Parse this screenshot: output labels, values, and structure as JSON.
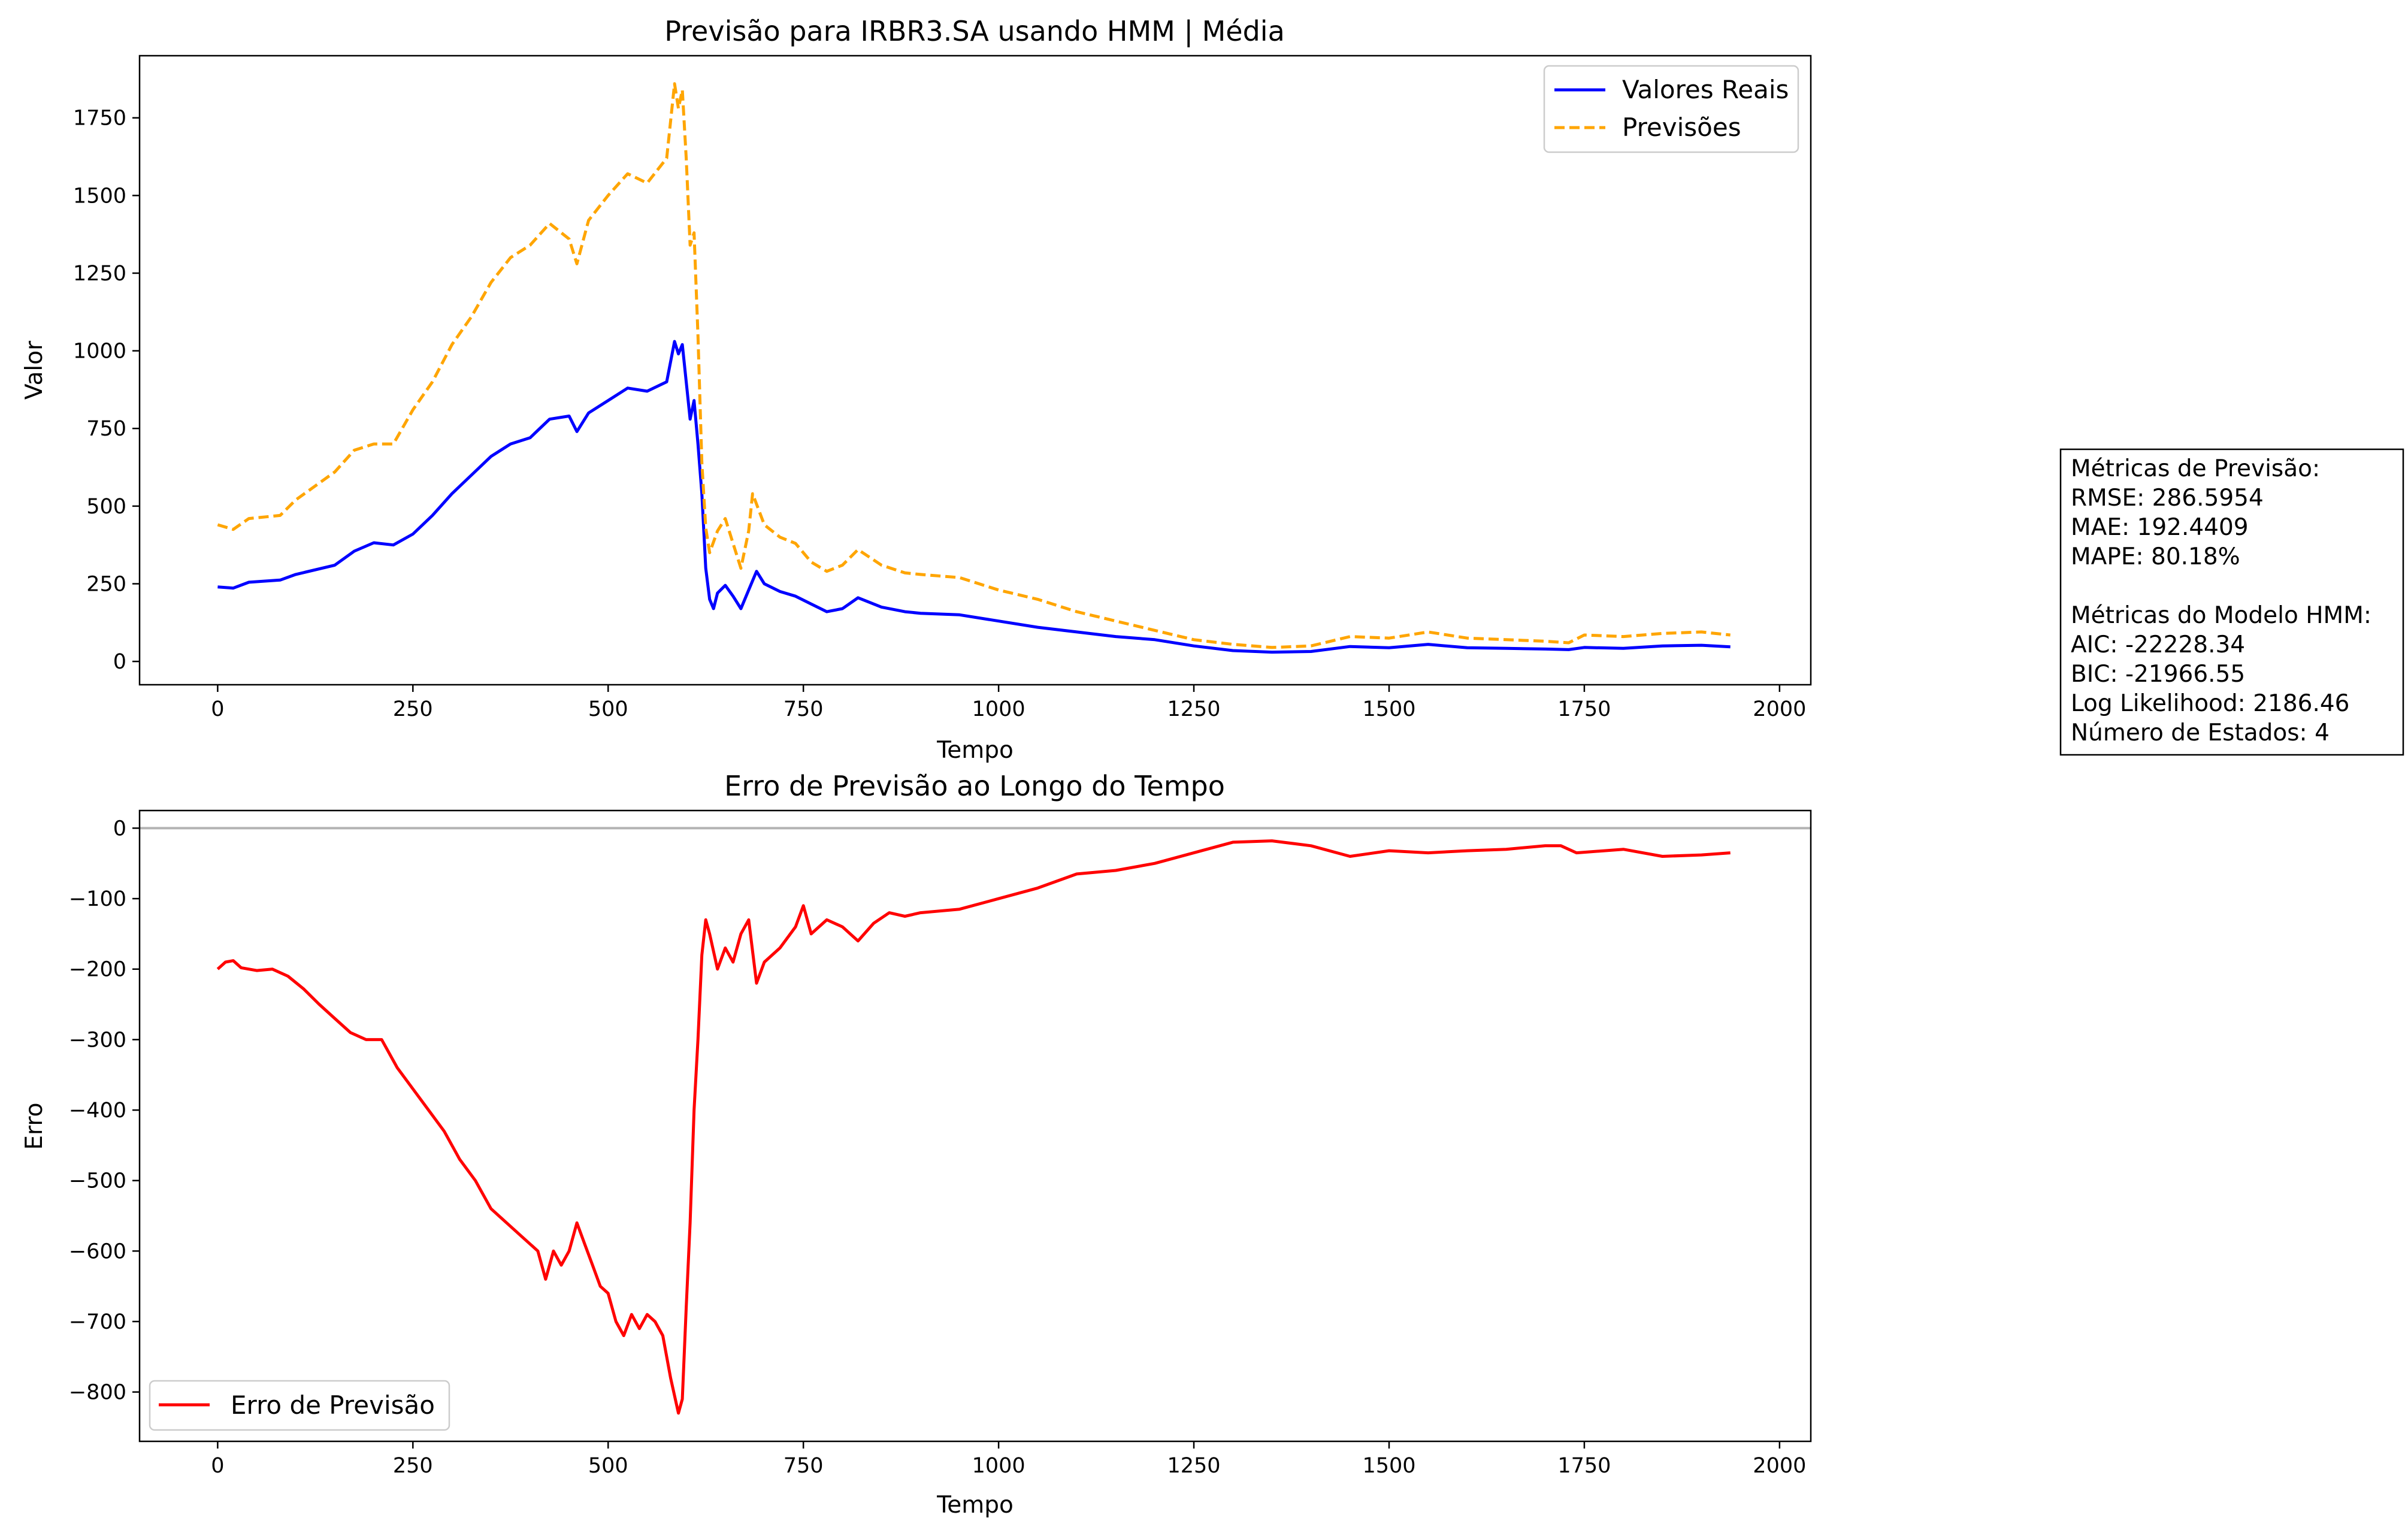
{
  "chart_data": [
    {
      "type": "line",
      "title": "Previsão para IRBR3.SA usando HMM | Média",
      "xlabel": "Tempo",
      "ylabel": "Valor",
      "xlim": [
        -100,
        2040
      ],
      "ylim": [
        -75,
        1950
      ],
      "xticks": [
        0,
        250,
        500,
        750,
        1000,
        1250,
        1500,
        1750,
        2000
      ],
      "yticks": [
        0,
        250,
        500,
        750,
        1000,
        1250,
        1500,
        1750
      ],
      "legend_position": "upper right",
      "series": [
        {
          "name": "Valores Reais",
          "color": "#0000ff",
          "style": "solid",
          "points": [
            [
              0,
              240
            ],
            [
              20,
              236
            ],
            [
              40,
              255
            ],
            [
              80,
              262
            ],
            [
              100,
              280
            ],
            [
              150,
              310
            ],
            [
              175,
              355
            ],
            [
              200,
              382
            ],
            [
              225,
              375
            ],
            [
              250,
              410
            ],
            [
              275,
              470
            ],
            [
              300,
              540
            ],
            [
              325,
              600
            ],
            [
              350,
              660
            ],
            [
              375,
              700
            ],
            [
              400,
              720
            ],
            [
              425,
              780
            ],
            [
              450,
              790
            ],
            [
              460,
              740
            ],
            [
              475,
              800
            ],
            [
              500,
              840
            ],
            [
              525,
              880
            ],
            [
              550,
              870
            ],
            [
              575,
              900
            ],
            [
              585,
              1030
            ],
            [
              590,
              990
            ],
            [
              595,
              1020
            ],
            [
              600,
              900
            ],
            [
              605,
              780
            ],
            [
              610,
              840
            ],
            [
              615,
              700
            ],
            [
              620,
              540
            ],
            [
              625,
              300
            ],
            [
              630,
              200
            ],
            [
              635,
              170
            ],
            [
              640,
              220
            ],
            [
              650,
              245
            ],
            [
              660,
              210
            ],
            [
              670,
              170
            ],
            [
              680,
              230
            ],
            [
              690,
              290
            ],
            [
              700,
              250
            ],
            [
              720,
              225
            ],
            [
              740,
              210
            ],
            [
              760,
              185
            ],
            [
              780,
              160
            ],
            [
              800,
              170
            ],
            [
              820,
              205
            ],
            [
              850,
              175
            ],
            [
              880,
              160
            ],
            [
              900,
              155
            ],
            [
              950,
              150
            ],
            [
              1000,
              130
            ],
            [
              1050,
              110
            ],
            [
              1100,
              95
            ],
            [
              1150,
              80
            ],
            [
              1200,
              70
            ],
            [
              1250,
              50
            ],
            [
              1300,
              35
            ],
            [
              1350,
              30
            ],
            [
              1400,
              32
            ],
            [
              1450,
              48
            ],
            [
              1500,
              44
            ],
            [
              1550,
              55
            ],
            [
              1600,
              44
            ],
            [
              1650,
              42
            ],
            [
              1700,
              40
            ],
            [
              1730,
              38
            ],
            [
              1750,
              45
            ],
            [
              1800,
              42
            ],
            [
              1850,
              50
            ],
            [
              1900,
              52
            ],
            [
              1937,
              47
            ]
          ]
        },
        {
          "name": "Previsões",
          "color": "#ffa500",
          "style": "dashed",
          "points": [
            [
              0,
              440
            ],
            [
              20,
              425
            ],
            [
              40,
              460
            ],
            [
              80,
              470
            ],
            [
              100,
              520
            ],
            [
              150,
              610
            ],
            [
              175,
              680
            ],
            [
              200,
              700
            ],
            [
              225,
              700
            ],
            [
              250,
              810
            ],
            [
              275,
              900
            ],
            [
              300,
              1020
            ],
            [
              325,
              1110
            ],
            [
              350,
              1220
            ],
            [
              375,
              1300
            ],
            [
              400,
              1340
            ],
            [
              425,
              1410
            ],
            [
              450,
              1360
            ],
            [
              460,
              1280
            ],
            [
              475,
              1420
            ],
            [
              500,
              1500
            ],
            [
              525,
              1570
            ],
            [
              550,
              1540
            ],
            [
              575,
              1620
            ],
            [
              585,
              1860
            ],
            [
              590,
              1780
            ],
            [
              595,
              1840
            ],
            [
              600,
              1620
            ],
            [
              605,
              1340
            ],
            [
              610,
              1380
            ],
            [
              615,
              1050
            ],
            [
              620,
              640
            ],
            [
              625,
              430
            ],
            [
              630,
              350
            ],
            [
              640,
              420
            ],
            [
              650,
              460
            ],
            [
              660,
              380
            ],
            [
              670,
              300
            ],
            [
              680,
              420
            ],
            [
              685,
              540
            ],
            [
              700,
              440
            ],
            [
              720,
              400
            ],
            [
              740,
              380
            ],
            [
              760,
              320
            ],
            [
              780,
              290
            ],
            [
              800,
              310
            ],
            [
              820,
              360
            ],
            [
              850,
              310
            ],
            [
              880,
              285
            ],
            [
              900,
              280
            ],
            [
              950,
              270
            ],
            [
              1000,
              230
            ],
            [
              1050,
              200
            ],
            [
              1100,
              160
            ],
            [
              1150,
              130
            ],
            [
              1200,
              100
            ],
            [
              1250,
              70
            ],
            [
              1300,
              55
            ],
            [
              1350,
              45
            ],
            [
              1400,
              50
            ],
            [
              1450,
              80
            ],
            [
              1500,
              75
            ],
            [
              1550,
              95
            ],
            [
              1600,
              75
            ],
            [
              1650,
              70
            ],
            [
              1700,
              65
            ],
            [
              1730,
              60
            ],
            [
              1750,
              85
            ],
            [
              1800,
              80
            ],
            [
              1850,
              90
            ],
            [
              1900,
              95
            ],
            [
              1937,
              85
            ]
          ]
        }
      ]
    },
    {
      "type": "line",
      "title": "Erro de Previsão ao Longo do Tempo",
      "xlabel": "Tempo",
      "ylabel": "Erro",
      "xlim": [
        -100,
        2040
      ],
      "ylim": [
        -870,
        25
      ],
      "xticks": [
        0,
        250,
        500,
        750,
        1000,
        1250,
        1500,
        1750,
        2000
      ],
      "yticks": [
        0,
        -100,
        -200,
        -300,
        -400,
        -500,
        -600,
        -700,
        -800
      ],
      "legend_position": "lower left",
      "reference_line": 0,
      "series": [
        {
          "name": "Erro de Previsão",
          "color": "#ff0000",
          "style": "solid",
          "points": [
            [
              0,
              -200
            ],
            [
              10,
              -190
            ],
            [
              20,
              -188
            ],
            [
              30,
              -198
            ],
            [
              50,
              -202
            ],
            [
              70,
              -200
            ],
            [
              90,
              -210
            ],
            [
              110,
              -228
            ],
            [
              130,
              -250
            ],
            [
              150,
              -270
            ],
            [
              170,
              -290
            ],
            [
              190,
              -300
            ],
            [
              210,
              -300
            ],
            [
              230,
              -340
            ],
            [
              250,
              -370
            ],
            [
              270,
              -400
            ],
            [
              290,
              -430
            ],
            [
              310,
              -470
            ],
            [
              330,
              -500
            ],
            [
              350,
              -540
            ],
            [
              370,
              -560
            ],
            [
              390,
              -580
            ],
            [
              410,
              -600
            ],
            [
              420,
              -640
            ],
            [
              430,
              -600
            ],
            [
              440,
              -620
            ],
            [
              450,
              -600
            ],
            [
              460,
              -560
            ],
            [
              470,
              -590
            ],
            [
              480,
              -620
            ],
            [
              490,
              -650
            ],
            [
              500,
              -660
            ],
            [
              510,
              -700
            ],
            [
              520,
              -720
            ],
            [
              530,
              -690
            ],
            [
              540,
              -710
            ],
            [
              550,
              -690
            ],
            [
              560,
              -700
            ],
            [
              570,
              -720
            ],
            [
              580,
              -780
            ],
            [
              590,
              -830
            ],
            [
              595,
              -810
            ],
            [
              600,
              -680
            ],
            [
              605,
              -560
            ],
            [
              610,
              -400
            ],
            [
              615,
              -300
            ],
            [
              620,
              -180
            ],
            [
              625,
              -130
            ],
            [
              630,
              -150
            ],
            [
              640,
              -200
            ],
            [
              650,
              -170
            ],
            [
              660,
              -190
            ],
            [
              670,
              -150
            ],
            [
              680,
              -130
            ],
            [
              690,
              -220
            ],
            [
              700,
              -190
            ],
            [
              720,
              -170
            ],
            [
              740,
              -140
            ],
            [
              750,
              -110
            ],
            [
              760,
              -150
            ],
            [
              780,
              -130
            ],
            [
              800,
              -140
            ],
            [
              820,
              -160
            ],
            [
              840,
              -135
            ],
            [
              860,
              -120
            ],
            [
              880,
              -125
            ],
            [
              900,
              -120
            ],
            [
              950,
              -115
            ],
            [
              1000,
              -100
            ],
            [
              1050,
              -85
            ],
            [
              1100,
              -65
            ],
            [
              1150,
              -60
            ],
            [
              1200,
              -50
            ],
            [
              1250,
              -35
            ],
            [
              1300,
              -20
            ],
            [
              1350,
              -18
            ],
            [
              1400,
              -25
            ],
            [
              1450,
              -40
            ],
            [
              1500,
              -32
            ],
            [
              1550,
              -35
            ],
            [
              1600,
              -32
            ],
            [
              1650,
              -30
            ],
            [
              1700,
              -25
            ],
            [
              1720,
              -25
            ],
            [
              1740,
              -35
            ],
            [
              1800,
              -30
            ],
            [
              1850,
              -40
            ],
            [
              1900,
              -38
            ],
            [
              1937,
              -35
            ]
          ]
        }
      ]
    }
  ],
  "metrics_box": {
    "lines": [
      "Métricas de Previsão:",
      "RMSE: 286.5954",
      "MAE: 192.4409",
      "MAPE: 80.18%",
      "",
      "Métricas do Modelo HMM:",
      "AIC: -22228.34",
      "BIC: -21966.55",
      "Log Likelihood: 2186.46",
      "Número de Estados: 4"
    ]
  }
}
